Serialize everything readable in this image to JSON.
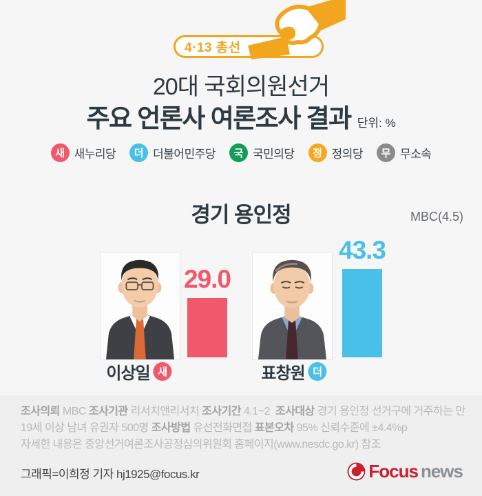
{
  "banner": {
    "label": "4·13 총선"
  },
  "title": {
    "line1": "20대 국회의원선거",
    "line2": "주요 언론사 여론조사 결과",
    "unit": "단위: %"
  },
  "legend": [
    {
      "abbr": "새",
      "name": "새누리당",
      "color": "#f2586c"
    },
    {
      "abbr": "더",
      "name": "더불어민주당",
      "color": "#49c0e8"
    },
    {
      "abbr": "국",
      "name": "국민의당",
      "color": "#129d58"
    },
    {
      "abbr": "정",
      "name": "정의당",
      "color": "#f6a81e"
    },
    {
      "abbr": "무",
      "name": "무소속",
      "color": "#8b8b8b"
    }
  ],
  "section": {
    "district": "경기 용인정",
    "source": "MBC(4.5)"
  },
  "candidates": [
    {
      "name": "이상일",
      "party_abbr": "새",
      "value": 29.0,
      "value_label": "29.0",
      "color": "#f2586c"
    },
    {
      "name": "표창원",
      "party_abbr": "더",
      "value": 43.3,
      "value_label": "43.3",
      "color": "#49c0e8"
    }
  ],
  "chart_data": {
    "type": "bar",
    "title": "경기 용인정",
    "subtitle": "20대 국회의원선거 주요 언론사 여론조사 결과",
    "source": "MBC(4.5)",
    "unit": "%",
    "categories": [
      "이상일",
      "표창원"
    ],
    "values": [
      29.0,
      43.3
    ],
    "series": [
      {
        "name": "이상일",
        "party": "새누리당",
        "party_abbr": "새",
        "value": 29.0,
        "color": "#f2586c"
      },
      {
        "name": "표창원",
        "party": "더불어민주당",
        "party_abbr": "더",
        "value": 43.3,
        "color": "#49c0e8"
      }
    ],
    "ylim": [
      0,
      50
    ],
    "grid": false,
    "legend_position": "top"
  },
  "footnote": {
    "segments": [
      {
        "label": "조사의뢰",
        "text": " MBC "
      },
      {
        "label": "조사기관",
        "text": " 리서치앤리서치 "
      },
      {
        "label": "조사기간",
        "text": " 4.1~2  "
      },
      {
        "label": "조사대상",
        "text": " 경기 용인정 선거구에 거주하는 만 19세 이상 남녀 유권자 500명 "
      },
      {
        "label": "조사방법",
        "text": " 유선전화면접 "
      },
      {
        "label": "표본오차",
        "text": " 95% 신뢰수준에 ±4.4%p"
      }
    ],
    "line2": "자세한 내용은 중앙선거여론조사공정심의위원회 홈페이지(www.nesdc.go.kr) 참조"
  },
  "credit": "그래픽=이희정 기자 hj1925@focus.kr",
  "logo": {
    "focus": "Focus",
    "news": "news"
  }
}
